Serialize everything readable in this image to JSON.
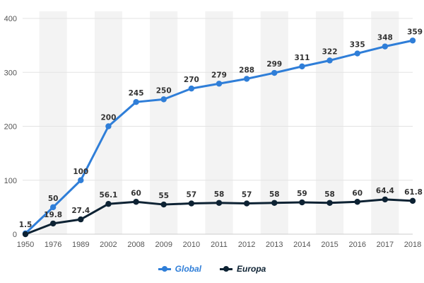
{
  "chart_data": {
    "type": "line",
    "categories": [
      "1950",
      "1976",
      "1989",
      "2002",
      "2008",
      "2009",
      "2010",
      "2011",
      "2012",
      "2013",
      "2014",
      "2015",
      "2016",
      "2017",
      "2018"
    ],
    "series": [
      {
        "name": "Global",
        "color": "#2f7ed8",
        "values": [
          1.5,
          50,
          100,
          200,
          245,
          250,
          270,
          279,
          288,
          299,
          311,
          322,
          335,
          348,
          359
        ]
      },
      {
        "name": "Europa",
        "color": "#0d2233",
        "values": [
          0,
          19.8,
          27.4,
          56.1,
          60,
          55,
          57,
          58,
          57,
          58,
          59,
          58,
          60,
          64.4,
          61.8
        ]
      }
    ],
    "data_labels": {
      "Global": [
        "1.5",
        "50",
        "100",
        "200",
        "245",
        "250",
        "270",
        "279",
        "288",
        "299",
        "311",
        "322",
        "335",
        "348",
        "359"
      ],
      "Europa": [
        "",
        "19.8",
        "27.4",
        "56.1",
        "60",
        "55",
        "57",
        "58",
        "57",
        "58",
        "59",
        "58",
        "60",
        "64.4",
        "61.8"
      ]
    },
    "y_ticks": [
      "0",
      "100",
      "200",
      "300",
      "400"
    ],
    "ylim": [
      0,
      400
    ],
    "grid": true,
    "alternating_bands": true,
    "legend_position": "bottom-center"
  }
}
